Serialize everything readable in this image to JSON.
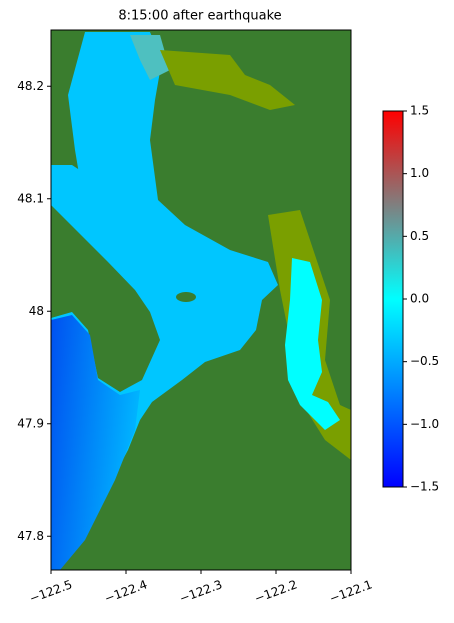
{
  "chart_data": {
    "type": "raster-map",
    "title": "8:15:00 after earthquake",
    "xlim": [
      -122.5,
      -122.1
    ],
    "xticks": [
      {
        "value": -122.5,
        "label": "−122.5"
      },
      {
        "value": -122.4,
        "label": "−122.4"
      },
      {
        "value": -122.3,
        "label": "−122.3"
      },
      {
        "value": -122.2,
        "label": "−122.2"
      },
      {
        "value": -122.1,
        "label": "−122.1"
      }
    ],
    "ylim": [
      47.77,
      48.25
    ],
    "yticks": [
      47.8,
      47.9,
      48.0,
      48.1,
      48.2
    ],
    "colorbar": {
      "clim": [
        -1.5,
        1.5
      ],
      "ticks": [
        {
          "value": -1.5,
          "label": "−1.5"
        },
        {
          "value": -1.0,
          "label": "−1.0"
        },
        {
          "value": -0.5,
          "label": "−0.5"
        },
        {
          "value": 0,
          "label": "0.0"
        },
        {
          "value": 0.5,
          "label": "0.5"
        },
        {
          "value": 1.0,
          "label": "1.0"
        },
        1.5
      ],
      "colors": [
        "#0000ff",
        "#00ffff",
        "#ff0000"
      ]
    }
  }
}
